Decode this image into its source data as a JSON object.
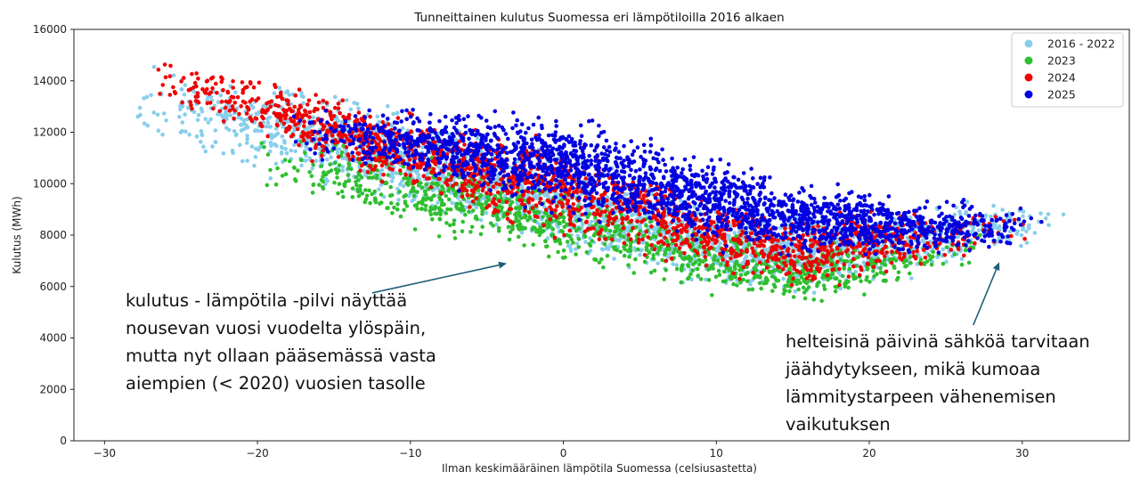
{
  "chart_data": {
    "type": "scatter",
    "title": "Tunneittainen kulutus Suomessa eri lämpötiloilla 2016 alkaen",
    "xlabel": "Ilman keskimääräinen lämpötila Suomessa (celsiusastetta)",
    "ylabel": "Kulutus (MWh)",
    "xlim": [
      -32,
      37
    ],
    "ylim": [
      0,
      16000
    ],
    "xticks": [
      -30,
      -20,
      -10,
      0,
      10,
      20,
      30
    ],
    "xtick_labels": [
      "−30",
      "−20",
      "−10",
      "0",
      "10",
      "20",
      "30"
    ],
    "yticks": [
      0,
      2000,
      4000,
      6000,
      8000,
      10000,
      12000,
      14000,
      16000
    ],
    "ytick_labels": [
      "0",
      "2000",
      "4000",
      "6000",
      "8000",
      "10000",
      "12000",
      "14000",
      "16000"
    ],
    "grid": false,
    "legend_position": "top-right",
    "series": [
      {
        "name": "2016 - 2022",
        "color": "#87ceeb",
        "x_range": [
          -28.5,
          33.5
        ],
        "band_center": [
          [
            -28,
            13300
          ],
          [
            -20,
            12400
          ],
          [
            -10,
            10900
          ],
          [
            0,
            9200
          ],
          [
            10,
            7600
          ],
          [
            15,
            7300
          ],
          [
            20,
            7500
          ],
          [
            25,
            8000
          ],
          [
            30,
            8500
          ],
          [
            34,
            8700
          ]
        ],
        "band_spread": [
          [
            -28,
            2200
          ],
          [
            -20,
            2400
          ],
          [
            -10,
            2400
          ],
          [
            0,
            2400
          ],
          [
            10,
            2200
          ],
          [
            20,
            1900
          ],
          [
            30,
            1300
          ],
          [
            34,
            600
          ]
        ]
      },
      {
        "name": "2023",
        "color": "#2fbf2f",
        "x_range": [
          -21,
          28
        ],
        "band_center": [
          [
            -21,
            11000
          ],
          [
            -10,
            9700
          ],
          [
            0,
            8500
          ],
          [
            10,
            7000
          ],
          [
            15,
            6400
          ],
          [
            20,
            6800
          ],
          [
            25,
            7300
          ],
          [
            28,
            7600
          ]
        ],
        "band_spread": [
          [
            -21,
            1400
          ],
          [
            -10,
            1900
          ],
          [
            0,
            2000
          ],
          [
            10,
            1600
          ],
          [
            20,
            1400
          ],
          [
            28,
            900
          ]
        ]
      },
      {
        "name": "2024",
        "color": "#f00000",
        "x_range": [
          -27.5,
          30.5
        ],
        "band_center": [
          [
            -27.5,
            14000
          ],
          [
            -20,
            13000
          ],
          [
            -10,
            11200
          ],
          [
            0,
            9700
          ],
          [
            10,
            8000
          ],
          [
            15,
            7300
          ],
          [
            20,
            7700
          ],
          [
            25,
            8000
          ],
          [
            30,
            8300
          ]
        ],
        "band_spread": [
          [
            -27.5,
            1200
          ],
          [
            -20,
            1600
          ],
          [
            -10,
            2000
          ],
          [
            0,
            2400
          ],
          [
            10,
            2000
          ],
          [
            20,
            1800
          ],
          [
            30,
            900
          ]
        ]
      },
      {
        "name": "2025",
        "color": "#0000e0",
        "x_range": [
          -18,
          31.5
        ],
        "band_center": [
          [
            -18,
            12000
          ],
          [
            -10,
            11700
          ],
          [
            -5,
            11200
          ],
          [
            0,
            10700
          ],
          [
            5,
            10000
          ],
          [
            10,
            9300
          ],
          [
            15,
            8700
          ],
          [
            20,
            8400
          ],
          [
            25,
            8300
          ],
          [
            30,
            8300
          ]
        ],
        "band_spread": [
          [
            -18,
            1200
          ],
          [
            -10,
            1700
          ],
          [
            0,
            2400
          ],
          [
            10,
            2200
          ],
          [
            20,
            1700
          ],
          [
            30,
            1000
          ]
        ]
      }
    ],
    "annotations": [
      {
        "text": "kulutus - lämpötila -pilvi näyttää\nnousevan vuosi vuodelta ylöspäin,\nmutta nyt ollaan pääsemässä vasta\naiempien (< 2020) vuosien tasolle",
        "arrow_from": [
          -12.5,
          5750
        ],
        "arrow_to": [
          -3.7,
          6900
        ]
      },
      {
        "text": "helteisinä päivinä sähköä tarvitaan\njäähdytykseen, mikä kumoaa\nlämmitystarpeen vähenemisen\nvaikutuksen",
        "arrow_from": [
          26.8,
          4500
        ],
        "arrow_to": [
          28.5,
          6950
        ]
      }
    ]
  },
  "colors": {
    "arrow": "#1f5f7a",
    "axis": "#222222"
  }
}
